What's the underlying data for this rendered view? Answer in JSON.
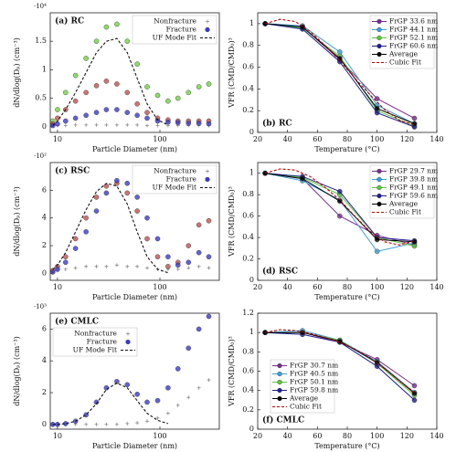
{
  "chart_data": [
    {
      "type": "scatter",
      "title": "(a) RC",
      "xlabel": "Particle Diameter (nm)",
      "ylabel": "dN/dlog(Dₚ) (cm⁻³)",
      "y_multiplier": "·10⁴",
      "log_x": true,
      "xlim": [
        8.5,
        380
      ],
      "xticks": [
        10,
        100
      ],
      "ylim": [
        -0.1,
        2.0
      ],
      "yticks": [
        0,
        0.5,
        1,
        1.5
      ],
      "legend": "upper right",
      "x": [
        9,
        10,
        12,
        15,
        19,
        24,
        30,
        38,
        48,
        60,
        75,
        95,
        120,
        150,
        190,
        240,
        300
      ],
      "series": [
        {
          "name": "Nonfracture",
          "color": "#8a8a8a",
          "marker": "plus",
          "line": "none",
          "values": [
            0.02,
            0.02,
            0.02,
            0.03,
            0.03,
            0.03,
            0.03,
            0.03,
            0.03,
            0.03,
            0.02,
            0.02,
            0.02,
            0.02,
            0.02,
            0.02,
            0.02
          ]
        },
        {
          "color": "#6ed43c",
          "marker": "circle",
          "line": "none",
          "values": [
            0.1,
            0.3,
            0.6,
            0.9,
            1.2,
            1.5,
            1.75,
            1.8,
            1.5,
            1.1,
            0.7,
            0.55,
            0.45,
            0.5,
            0.6,
            0.7,
            0.75
          ]
        },
        {
          "color": "#c0504d",
          "marker": "circle",
          "line": "none",
          "values": [
            0.05,
            0.15,
            0.3,
            0.45,
            0.6,
            0.72,
            0.8,
            0.75,
            0.6,
            0.4,
            0.25,
            0.15,
            0.12,
            0.1,
            0.1,
            0.1,
            0.1
          ]
        },
        {
          "name": "Fracture",
          "color": "#3a3ad0",
          "marker": "circle",
          "line": "none",
          "values": [
            0.02,
            0.05,
            0.1,
            0.15,
            0.2,
            0.25,
            0.3,
            0.3,
            0.25,
            0.2,
            0.15,
            0.1,
            0.08,
            0.07,
            0.06,
            0.06,
            0.05
          ]
        },
        {
          "name": "UF Mode Fit",
          "color": "#111111",
          "marker": "none",
          "line": "dashed",
          "values": [
            0.02,
            0.1,
            0.3,
            0.6,
            0.95,
            1.3,
            1.5,
            1.55,
            1.3,
            0.85,
            0.4,
            0.12,
            0.03,
            null,
            null,
            null,
            null
          ]
        }
      ]
    },
    {
      "type": "line",
      "title": "(b) RC",
      "xlabel": "Temperature (°C)",
      "ylabel": "VFR (CMD/CMD₀)³",
      "xlim": [
        20,
        140
      ],
      "xticks": [
        20,
        40,
        60,
        80,
        100,
        120,
        140
      ],
      "ylim": [
        0,
        1.1
      ],
      "yticks": [
        0,
        0.2,
        0.4,
        0.6,
        0.8,
        1
      ],
      "legend": "upper right",
      "x": [
        25,
        50,
        75,
        100,
        125
      ],
      "series": [
        {
          "name": "FrGP 33.6 nm",
          "color": "#7b2d8e",
          "marker": "circle",
          "line": "solid",
          "values": [
            1,
            0.97,
            0.67,
            0.31,
            0.13
          ]
        },
        {
          "name": "FrGP 44.1 nm",
          "color": "#3ca0d8",
          "marker": "circle",
          "line": "solid",
          "values": [
            1,
            0.98,
            0.74,
            0.25,
            0.08
          ]
        },
        {
          "name": "FrGP 52.1 nm",
          "color": "#5cc83c",
          "marker": "circle",
          "line": "solid",
          "values": [
            1,
            0.96,
            0.7,
            0.2,
            0.06
          ]
        },
        {
          "name": "FrGP 60.6 nm",
          "color": "#1f1f8f",
          "marker": "circle",
          "line": "solid",
          "values": [
            1,
            0.95,
            0.65,
            0.18,
            0.05
          ]
        },
        {
          "name": "Average",
          "color": "#000000",
          "marker": "circle",
          "line": "solid",
          "values": [
            1,
            0.97,
            0.68,
            0.22,
            0.08
          ]
        },
        {
          "name": "Cubic Fit",
          "color": "#c00000",
          "marker": "none",
          "line": "dashed",
          "x": [
            25,
            35,
            45,
            55,
            65,
            75,
            85,
            95,
            105,
            115,
            125
          ],
          "values": [
            1.0,
            1.04,
            1.02,
            0.93,
            0.8,
            0.66,
            0.5,
            0.35,
            0.21,
            0.11,
            0.07
          ]
        }
      ]
    },
    {
      "type": "scatter",
      "title": "(c) RSC",
      "xlabel": "Particle Diameter (nm)",
      "ylabel": "dN/dlog(Dₚ) (cm⁻³)",
      "y_multiplier": "·10²",
      "log_x": true,
      "xlim": [
        8.5,
        380
      ],
      "xticks": [
        10,
        100
      ],
      "ylim": [
        -0.5,
        8
      ],
      "yticks": [
        0,
        2,
        4,
        6
      ],
      "legend": "upper right",
      "x": [
        9,
        10,
        12,
        15,
        19,
        24,
        30,
        38,
        48,
        60,
        75,
        95,
        120,
        150,
        190,
        240,
        300
      ],
      "series": [
        {
          "name": "Nonfracture",
          "color": "#8a8a8a",
          "marker": "plus",
          "line": "none",
          "values": [
            0.1,
            0.2,
            0.3,
            0.4,
            0.5,
            0.5,
            0.5,
            0.6,
            0.5,
            0.5,
            0.4,
            0.3,
            0.3,
            0.3,
            0.4,
            0.5,
            0.4
          ]
        },
        {
          "color": "#c0504d",
          "marker": "circle",
          "line": "none",
          "values": [
            0.2,
            0.5,
            1.2,
            2.5,
            4,
            5.5,
            6.3,
            6.5,
            5.8,
            4.5,
            2.5,
            1.2,
            0.5,
            0.8,
            2,
            3.5,
            3.8
          ]
        },
        {
          "name": "Fracture",
          "color": "#3a3ad0",
          "marker": "circle",
          "line": "none",
          "values": [
            0.1,
            0.3,
            0.8,
            1.8,
            3,
            4.5,
            5.8,
            6.7,
            6.5,
            5.5,
            4,
            2.5,
            1.2,
            0.6,
            0.8,
            1.5,
            1.2
          ]
        },
        {
          "name": "UF Mode Fit",
          "color": "#111111",
          "marker": "none",
          "line": "dashed",
          "values": [
            0.3,
            0.6,
            1.5,
            3,
            4.6,
            5.9,
            6.5,
            6.3,
            5,
            3,
            1.2,
            0.3,
            0.05,
            null,
            null,
            null,
            null
          ]
        }
      ]
    },
    {
      "type": "line",
      "title": "(d) RSC",
      "xlabel": "Temperature (°C)",
      "ylabel": "VFR (CMD/CMD₀)³",
      "xlim": [
        20,
        140
      ],
      "xticks": [
        20,
        40,
        60,
        80,
        100,
        120,
        140
      ],
      "ylim": [
        0,
        1.1
      ],
      "yticks": [
        0,
        0.2,
        0.4,
        0.6,
        0.8,
        1
      ],
      "legend": "upper right",
      "x": [
        25,
        50,
        75,
        100,
        125
      ],
      "series": [
        {
          "name": "FrGP 29.7 nm",
          "color": "#7b2d8e",
          "marker": "circle",
          "line": "solid",
          "values": [
            1,
            0.95,
            0.6,
            0.42,
            0.33
          ]
        },
        {
          "name": "FrGP 39.8 nm",
          "color": "#3ca0d8",
          "marker": "circle",
          "line": "solid",
          "values": [
            1,
            0.93,
            0.75,
            0.27,
            0.35
          ]
        },
        {
          "name": "FrGP 49.1 nm",
          "color": "#5cc83c",
          "marker": "circle",
          "line": "solid",
          "values": [
            1,
            0.96,
            0.8,
            0.4,
            0.32
          ]
        },
        {
          "name": "FrGP 59.6 nm",
          "color": "#1f1f8f",
          "marker": "circle",
          "line": "solid",
          "values": [
            1,
            0.97,
            0.83,
            0.4,
            0.37
          ]
        },
        {
          "name": "Average",
          "color": "#000000",
          "marker": "circle",
          "line": "solid",
          "values": [
            1,
            0.95,
            0.74,
            0.38,
            0.36
          ]
        },
        {
          "name": "Cubic Fit",
          "color": "#c00000",
          "marker": "none",
          "line": "dashed",
          "x": [
            25,
            35,
            45,
            55,
            65,
            75,
            85,
            95,
            105,
            115,
            125
          ],
          "values": [
            1.0,
            1.04,
            1.03,
            0.97,
            0.87,
            0.75,
            0.6,
            0.46,
            0.36,
            0.33,
            0.37
          ]
        }
      ]
    },
    {
      "type": "scatter",
      "title": "(e) CMLC",
      "xlabel": "Particle Diameter (nm)",
      "ylabel": "dN/dlog(Dₚ) (cm⁻³)",
      "y_multiplier": "·10³",
      "log_x": true,
      "xlim": [
        8.5,
        380
      ],
      "xticks": [
        10,
        100
      ],
      "ylim": [
        -0.3,
        7
      ],
      "yticks": [
        0,
        2,
        4,
        6
      ],
      "legend": "upper left",
      "x": [
        9,
        10,
        12,
        15,
        19,
        24,
        30,
        38,
        48,
        60,
        75,
        95,
        120,
        150,
        190,
        240,
        300
      ],
      "series": [
        {
          "name": "Nonfracture",
          "color": "#8a8a8a",
          "marker": "plus",
          "line": "none",
          "values": [
            0,
            0,
            0,
            0,
            0,
            0,
            0,
            0,
            0.05,
            0.1,
            0.2,
            0.4,
            0.7,
            1.2,
            1.7,
            2.3,
            2.8
          ]
        },
        {
          "name": "Fracture",
          "color": "#3a3ad0",
          "marker": "circle",
          "line": "none",
          "values": [
            0,
            0,
            0.05,
            0.2,
            0.6,
            1.4,
            2.3,
            2.7,
            2.5,
            1.9,
            1.4,
            1.5,
            2.3,
            3.5,
            4.8,
            6,
            6.8
          ]
        },
        {
          "name": "UF Mode Fit",
          "color": "#111111",
          "marker": "none",
          "line": "dashed",
          "values": [
            0,
            0,
            0.05,
            0.2,
            0.6,
            1.3,
            2.2,
            2.6,
            2.3,
            1.5,
            0.7,
            0.25,
            0.05,
            null,
            null,
            null,
            null
          ]
        }
      ]
    },
    {
      "type": "line",
      "title": "(f) CMLC",
      "xlabel": "Temperature (°C)",
      "ylabel": "VFR (CMD/CMD₀)³",
      "xlim": [
        20,
        140
      ],
      "xticks": [
        20,
        40,
        60,
        80,
        100,
        120,
        140
      ],
      "ylim": [
        0,
        1.2
      ],
      "yticks": [
        0,
        0.2,
        0.4,
        0.6,
        0.8,
        1,
        1.2
      ],
      "legend": "lower left",
      "x": [
        25,
        50,
        75,
        100,
        125
      ],
      "series": [
        {
          "name": "FrGP 30.7 nm",
          "color": "#7b2d8e",
          "marker": "circle",
          "line": "solid",
          "values": [
            1,
            1.0,
            0.9,
            0.72,
            0.45
          ]
        },
        {
          "name": "FrGP 40.5 nm",
          "color": "#3ca0d8",
          "marker": "circle",
          "line": "solid",
          "values": [
            1,
            1.02,
            0.92,
            0.7,
            0.38
          ]
        },
        {
          "name": "FrGP 50.1 nm",
          "color": "#5cc83c",
          "marker": "circle",
          "line": "solid",
          "values": [
            1,
            1.0,
            0.92,
            0.68,
            0.35
          ]
        },
        {
          "name": "FrGP 59.8 nm",
          "color": "#1f1f8f",
          "marker": "circle",
          "line": "solid",
          "values": [
            1,
            0.98,
            0.9,
            0.65,
            0.3
          ]
        },
        {
          "name": "Average",
          "color": "#000000",
          "marker": "circle",
          "line": "solid",
          "values": [
            1,
            1.0,
            0.91,
            0.69,
            0.37
          ]
        },
        {
          "name": "Cubic Fit",
          "color": "#c00000",
          "marker": "none",
          "line": "dashed",
          "x": [
            25,
            35,
            45,
            55,
            65,
            75,
            85,
            95,
            105,
            115,
            125
          ],
          "values": [
            1,
            1.03,
            1.02,
            0.99,
            0.95,
            0.9,
            0.83,
            0.74,
            0.63,
            0.5,
            0.38
          ]
        }
      ]
    }
  ]
}
